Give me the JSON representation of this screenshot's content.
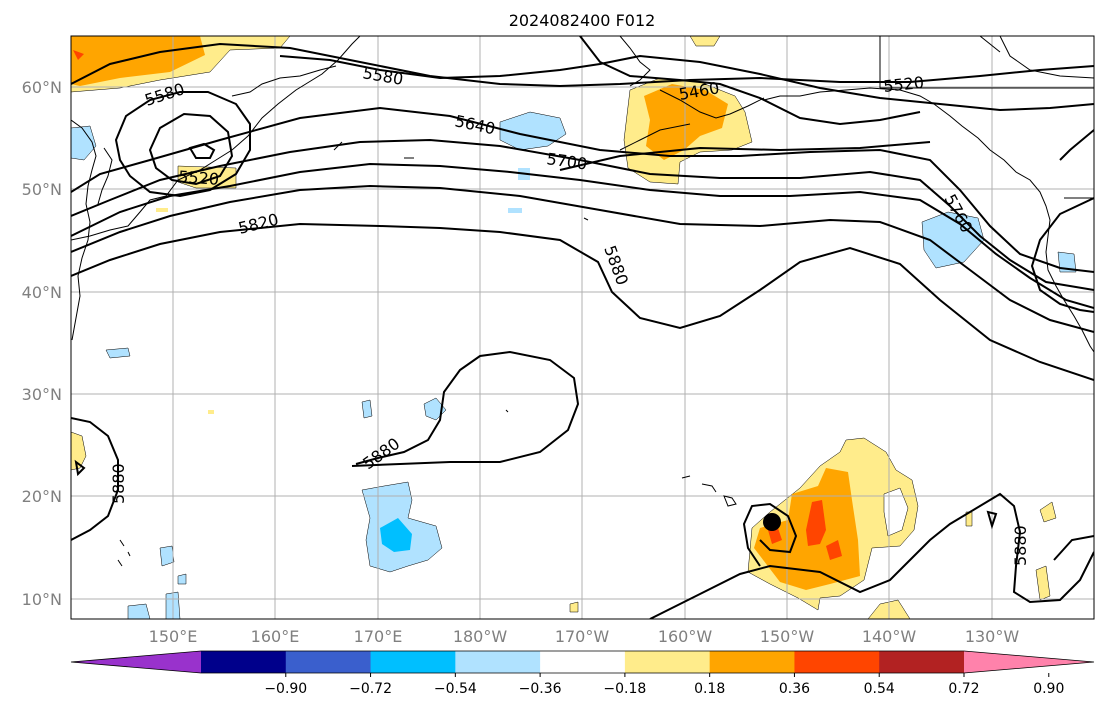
{
  "title": "2024082400 F012",
  "lat_labels": [
    "60°N",
    "50°N",
    "40°N",
    "30°N",
    "20°N",
    "10°N"
  ],
  "lon_labels": [
    "150°E",
    "160°E",
    "170°E",
    "180°W",
    "170°W",
    "160°W",
    "150°W",
    "140°W",
    "130°W"
  ],
  "contour_labels": [
    "5580",
    "5580",
    "5520",
    "5640",
    "5700",
    "5460",
    "5520",
    "5760",
    "5820",
    "5880",
    "5880",
    "5880",
    "5880"
  ],
  "colorbar": {
    "ticks": [
      "−0.90",
      "−0.72",
      "−0.54",
      "−0.36",
      "−0.18",
      "0.18",
      "0.36",
      "0.54",
      "0.72",
      "0.90"
    ],
    "colors": [
      "#9932cc",
      "#00008b",
      "#3a5fcd",
      "#00bfff",
      "#b0e2ff",
      "#ffffff",
      "#ffec8b",
      "#ffa500",
      "#ff4500",
      "#b22222",
      "#ff82ab"
    ]
  },
  "storm_marker": {
    "lat": 17.5,
    "lon": "151°W"
  }
}
